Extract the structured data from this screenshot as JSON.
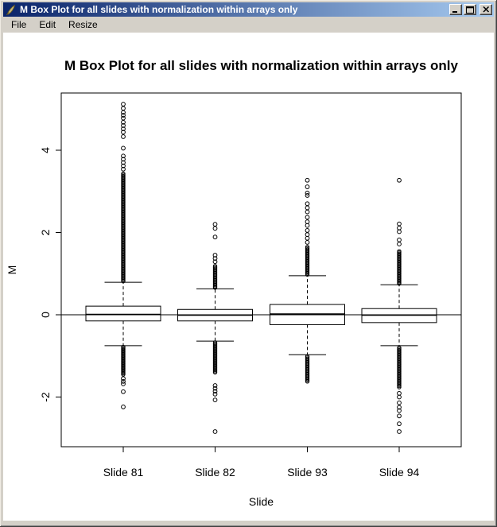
{
  "window": {
    "title": "M Box Plot for all slides with normalization within arrays only",
    "icon_name": "feather-icon",
    "menu": [
      {
        "label": "File"
      },
      {
        "label": "Edit"
      },
      {
        "label": "Resize"
      }
    ],
    "controls": [
      {
        "name": "minimize"
      },
      {
        "name": "maximize"
      },
      {
        "name": "close"
      }
    ]
  },
  "colors": {
    "titlebar_gradient_start": "#0a246a",
    "titlebar_gradient_end": "#a6caf0",
    "chrome": "#d4d0c8",
    "plot_background": "#ffffff",
    "ink": "#000000"
  },
  "chart_data": {
    "type": "boxplot",
    "title": "M Box Plot for all slides with normalization within arrays only",
    "xlabel": "Slide",
    "ylabel": "M",
    "ylim": [
      -3.2,
      5.4
    ],
    "yticks": [
      -2,
      0,
      2,
      4
    ],
    "grid": false,
    "reference_line_y": 0,
    "categories": [
      "Slide 81",
      "Slide 82",
      "Slide 93",
      "Slide 94"
    ],
    "series": [
      {
        "label": "Slide 81",
        "q1": -0.15,
        "median": 0.01,
        "q3": 0.21,
        "whisker_low": -0.75,
        "whisker_high": 0.79,
        "outlier_runs": [
          [
            0.82,
            3.45
          ],
          [
            -1.45,
            -0.78
          ]
        ],
        "outlier_points": [
          5.12,
          5.02,
          4.92,
          4.85,
          4.78,
          4.68,
          4.6,
          4.52,
          4.44,
          4.33,
          4.05,
          3.86,
          3.78,
          3.7,
          3.62,
          3.54,
          -1.55,
          -1.62,
          -1.68,
          -1.87,
          -2.24
        ]
      },
      {
        "label": "Slide 82",
        "q1": -0.15,
        "median": -0.01,
        "q3": 0.13,
        "whisker_low": -0.64,
        "whisker_high": 0.63,
        "outlier_runs": [
          [
            0.66,
            1.2
          ],
          [
            -1.4,
            -0.67
          ]
        ],
        "outlier_points": [
          2.2,
          2.1,
          1.89,
          1.45,
          1.37,
          1.29,
          -1.72,
          -1.79,
          -1.86,
          -1.93,
          -2.07,
          -2.84
        ]
      },
      {
        "label": "Slide 93",
        "q1": -0.24,
        "median": 0.02,
        "q3": 0.25,
        "whisker_low": -0.97,
        "whisker_high": 0.95,
        "outlier_runs": [
          [
            0.98,
            1.66
          ],
          [
            -1.62,
            -1.0
          ]
        ],
        "outlier_points": [
          3.27,
          3.11,
          2.96,
          2.9,
          2.7,
          2.6,
          2.5,
          2.37,
          2.26,
          2.17,
          2.05,
          1.95,
          1.86,
          1.76
        ]
      },
      {
        "label": "Slide 94",
        "q1": -0.19,
        "median": -0.01,
        "q3": 0.15,
        "whisker_low": -0.75,
        "whisker_high": 0.73,
        "outlier_runs": [
          [
            0.76,
            1.55
          ],
          [
            -1.76,
            -0.78
          ]
        ],
        "outlier_points": [
          3.27,
          2.21,
          2.11,
          2.02,
          1.82,
          1.72,
          -1.91,
          -2.0,
          -2.14,
          -2.25,
          -2.33,
          -2.46,
          -2.65,
          -2.84
        ]
      }
    ]
  }
}
